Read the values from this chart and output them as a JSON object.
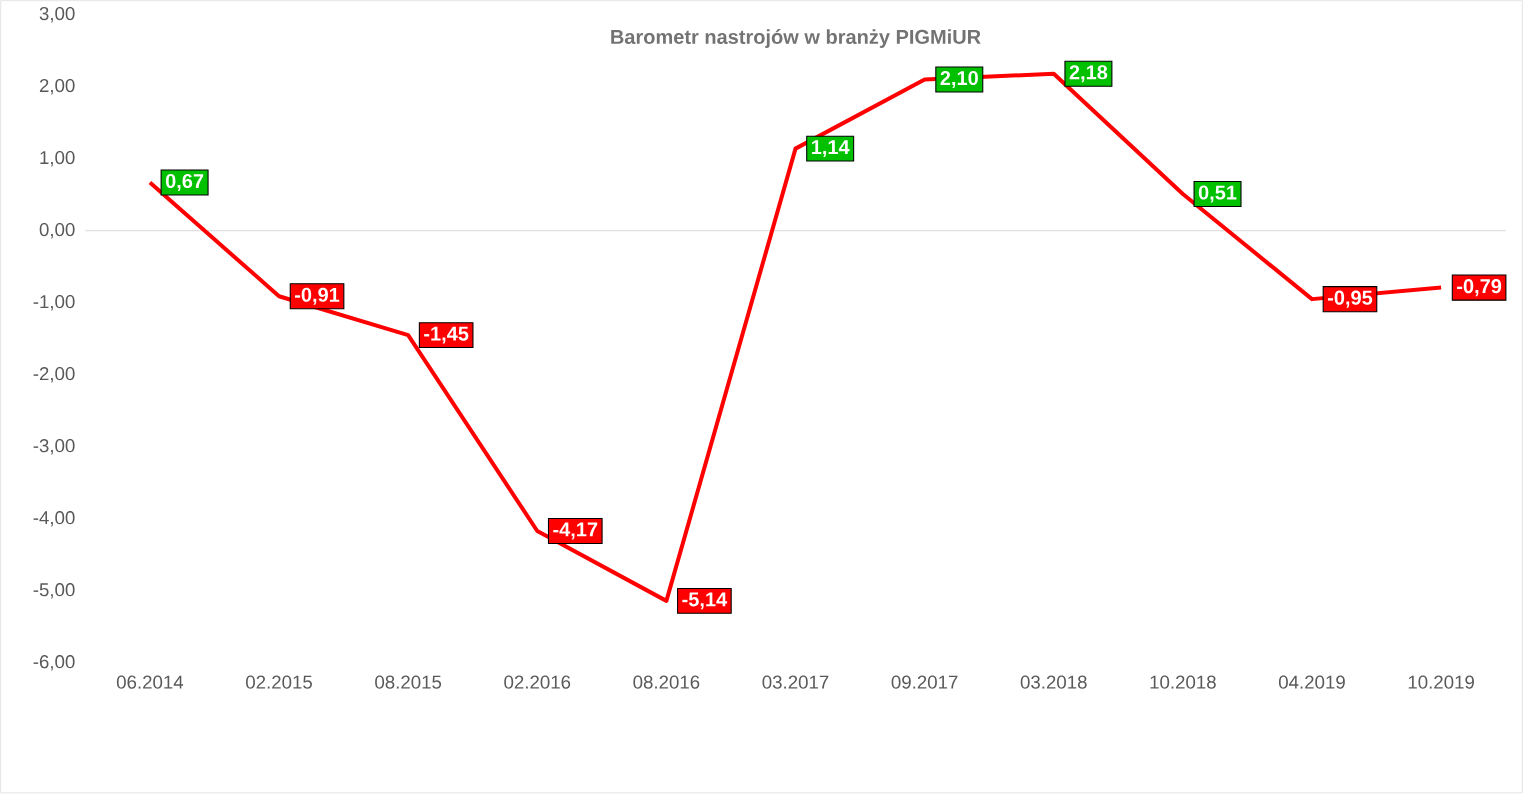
{
  "chart_data": {
    "type": "line",
    "title": "Barometr nastrojów w branży PIGMiUR",
    "categories": [
      "06.2014",
      "02.2015",
      "08.2015",
      "02.2016",
      "08.2016",
      "03.2017",
      "09.2017",
      "03.2018",
      "10.2018",
      "04.2019",
      "10.2019"
    ],
    "values": [
      0.67,
      -0.91,
      -1.45,
      -4.17,
      -5.14,
      1.14,
      2.1,
      2.18,
      0.51,
      -0.95,
      -0.79
    ],
    "value_labels": [
      "0,67",
      "-0,91",
      "-1,45",
      "-4,17",
      "-5,14",
      "1,14",
      "2,10",
      "2,18",
      "0,51",
      "-0,95",
      "-0,79"
    ],
    "colors": [
      "#00c000",
      "#ff0000",
      "#ff0000",
      "#ff0000",
      "#ff0000",
      "#00c000",
      "#00c000",
      "#00c000",
      "#00c000",
      "#ff0000",
      "#ff0000"
    ],
    "color": "#ff0000",
    "ylim": [
      -6,
      3
    ],
    "yticks": [
      {
        "value": -6,
        "label": "-6,00"
      },
      {
        "value": -5,
        "label": "-5,00"
      },
      {
        "value": -4,
        "label": "-4,00"
      },
      {
        "value": -3,
        "label": "-3,00"
      },
      {
        "value": -2,
        "label": "-2,00"
      },
      {
        "value": -1,
        "label": "-1,00"
      },
      {
        "value": 0,
        "label": "0,00"
      },
      {
        "value": 1,
        "label": "1,00"
      },
      {
        "value": 2,
        "label": "2,00"
      },
      {
        "value": 3,
        "label": "3,00"
      }
    ],
    "ref_lines": [
      {
        "axis": "y",
        "value": 0,
        "color": "#d9d9d9"
      }
    ],
    "grid": false,
    "marker": "none",
    "line_style": "solid"
  }
}
